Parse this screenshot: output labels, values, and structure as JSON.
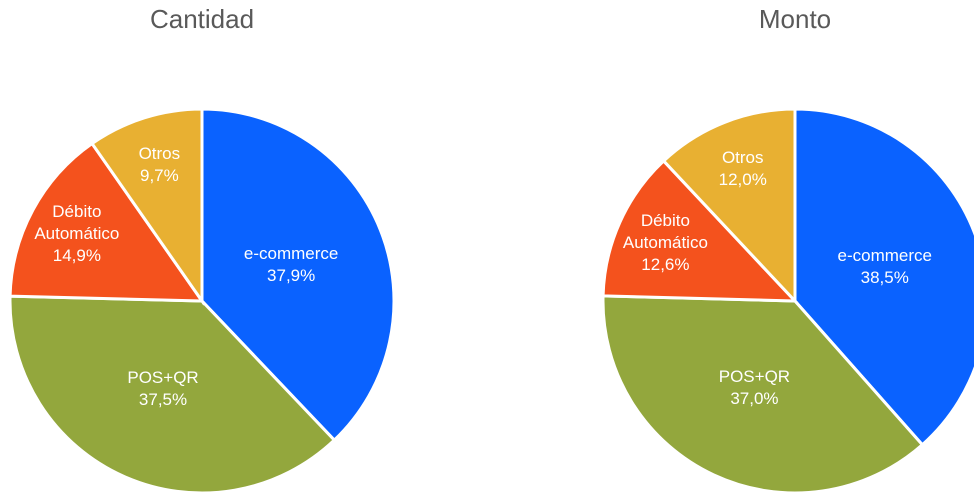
{
  "chart_data": [
    {
      "type": "pie",
      "title": "Cantidad",
      "categories": [
        "e-commerce",
        "POS+QR",
        "Débito Automático",
        "Otros"
      ],
      "values": [
        37.9,
        37.5,
        14.9,
        9.7
      ],
      "value_labels": [
        "37,9%",
        "37,5%",
        "14,9%",
        "9,7%"
      ],
      "colors": [
        "#0a62ff",
        "#93a73d",
        "#f4521d",
        "#e8b032"
      ]
    },
    {
      "type": "pie",
      "title": "Monto",
      "categories": [
        "e-commerce",
        "POS+QR",
        "Débito Automático",
        "Otros"
      ],
      "values": [
        38.5,
        37.0,
        12.6,
        12.0
      ],
      "value_labels": [
        "38,5%",
        "37,0%",
        "12,6%",
        "12,0%"
      ],
      "colors": [
        "#0a62ff",
        "#93a73d",
        "#f4521d",
        "#e8b032"
      ]
    }
  ]
}
